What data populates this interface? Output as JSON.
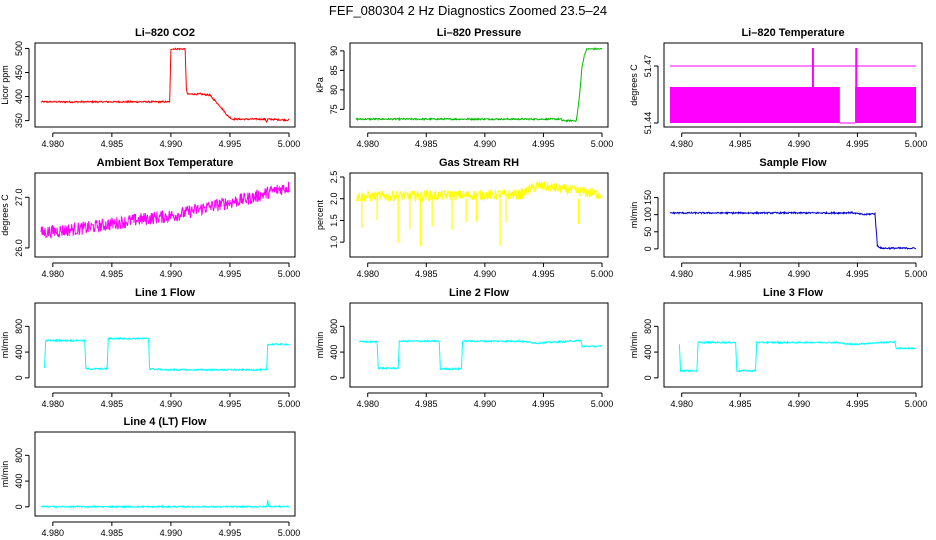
{
  "title": "FEF_080304  2 Hz Diagnostics Zoomed 23.5–24",
  "chart_data": [
    {
      "type": "line",
      "title": "Li–820 CO2",
      "ylabel": "Licor ppm",
      "color": "#ff0000",
      "xlim": [
        4.979,
        5.0
      ],
      "ylim": [
        345,
        503
      ],
      "xticks": [
        "4.980",
        "4.985",
        "4.990",
        "4.995",
        "5.000"
      ],
      "yticks": [
        "350",
        "400",
        "450",
        "500"
      ],
      "series": [
        {
          "name": "CO2",
          "x": [
            4.979,
            4.9898,
            4.9899,
            4.99,
            4.9912,
            4.9913,
            4.9914,
            4.9925,
            4.9933,
            4.9943,
            4.9948,
            4.9952,
            4.998,
            4.9981,
            4.9982,
            5.0
          ],
          "y": [
            389,
            389,
            389,
            499,
            499,
            420,
            405,
            405,
            403,
            376,
            360,
            353,
            353,
            347,
            353,
            351
          ]
        }
      ]
    },
    {
      "type": "line",
      "title": "Li–820 Pressure",
      "ylabel": "kPa",
      "color": "#00bb00",
      "xlim": [
        4.979,
        5.0
      ],
      "ylim": [
        71.5,
        91
      ],
      "xticks": [
        "4.980",
        "4.985",
        "4.990",
        "4.995",
        "5.000"
      ],
      "yticks": [
        "75",
        "80",
        "85",
        "90"
      ],
      "series": [
        {
          "name": "Pressure",
          "x": [
            4.979,
            4.9965,
            4.9966,
            4.9978,
            4.9979,
            4.9981,
            4.9983,
            4.9985,
            4.9987,
            5.0
          ],
          "y": [
            72.5,
            72.5,
            72.1,
            72.1,
            74,
            79,
            86,
            89,
            90.5,
            90.5
          ]
        }
      ]
    },
    {
      "type": "line",
      "title": "Li–820 Temperature",
      "ylabel": "degrees C",
      "color": "#ff00ff",
      "xlim": [
        4.979,
        5.0
      ],
      "ylim": [
        51.44,
        51.48
      ],
      "xticks": [
        "4.980",
        "4.985",
        "4.990",
        "4.995",
        "5.000"
      ],
      "yticks": [
        "51.44",
        "51.47"
      ],
      "series": [
        {
          "name": "Temperature",
          "x": [
            4.979,
            5.0
          ],
          "y": [
            51.47,
            51.47
          ]
        }
      ]
    },
    {
      "type": "line",
      "title": "Ambient Box Temperature",
      "ylabel": "degrees C",
      "color": "#ff00ff",
      "xlim": [
        4.979,
        5.0
      ],
      "ylim": [
        25.9,
        27.4
      ],
      "xticks": [
        "4.980",
        "4.985",
        "4.990",
        "4.995",
        "5.000"
      ],
      "yticks": [
        "26.0",
        "27.0"
      ],
      "series": [
        {
          "name": "Ambient",
          "x": [
            4.979,
            4.983,
            4.987,
            4.9905,
            4.993,
            4.995,
            4.997,
            4.999,
            5.0
          ],
          "y": [
            26.3,
            26.4,
            26.55,
            26.65,
            26.8,
            26.9,
            27.0,
            27.15,
            27.2
          ]
        }
      ]
    },
    {
      "type": "line",
      "title": "Gas Stream RH",
      "ylabel": "percent",
      "color": "#ffff00",
      "xlim": [
        4.979,
        5.0
      ],
      "ylim": [
        0.75,
        2.5
      ],
      "xticks": [
        "4.980",
        "4.985",
        "4.990",
        "4.995",
        "5.000"
      ],
      "yticks": [
        "1.0",
        "1.5",
        "2.0",
        "2.5"
      ],
      "series": [
        {
          "name": "RH",
          "x": [
            4.979,
            4.993,
            4.9945,
            5.0
          ],
          "y": [
            2.05,
            2.1,
            2.3,
            2.1
          ]
        }
      ]
    },
    {
      "type": "line",
      "title": "Sample Flow",
      "ylabel": "ml/min",
      "color": "#0000cc",
      "xlim": [
        4.979,
        5.0
      ],
      "ylim": [
        -12,
        210
      ],
      "xticks": [
        "4.980",
        "4.985",
        "4.990",
        "4.995",
        "5.000"
      ],
      "yticks": [
        "0",
        "50",
        "100",
        "150"
      ],
      "series": [
        {
          "name": "Sample",
          "x": [
            4.979,
            4.9935,
            4.9945,
            4.9955,
            4.9965,
            4.9967,
            4.997,
            5.0
          ],
          "y": [
            105,
            105,
            106,
            100,
            103,
            10,
            2,
            2
          ]
        }
      ]
    },
    {
      "type": "line",
      "title": "Line 1 Flow",
      "ylabel": "ml/min",
      "color": "#00ffff",
      "xlim": [
        4.979,
        5.0
      ],
      "ylim": [
        -80,
        1100
      ],
      "xticks": [
        "4.980",
        "4.985",
        "4.990",
        "4.995",
        "5.000"
      ],
      "yticks": [
        "0",
        "400",
        "800"
      ],
      "series": [
        {
          "name": "Line1",
          "x": [
            4.9793,
            4.9794,
            4.9827,
            4.9828,
            4.9846,
            4.9847,
            4.9881,
            4.9882,
            4.9897,
            4.9981,
            4.9982,
            5.0
          ],
          "y": [
            150,
            580,
            580,
            140,
            140,
            610,
            610,
            140,
            125,
            125,
            520,
            520
          ]
        }
      ]
    },
    {
      "type": "line",
      "title": "Line 2 Flow",
      "ylabel": "ml/min",
      "color": "#00ffff",
      "xlim": [
        4.979,
        5.0
      ],
      "ylim": [
        -80,
        1100
      ],
      "xticks": [
        "4.980",
        "4.985",
        "4.990",
        "4.995",
        "5.000"
      ],
      "yticks": [
        "0",
        "400",
        "800"
      ],
      "series": [
        {
          "name": "Line2",
          "x": [
            4.9793,
            4.9808,
            4.9809,
            4.9826,
            4.9827,
            4.9861,
            4.9862,
            4.988,
            4.9881,
            4.993,
            4.9945,
            4.9982,
            4.9983,
            5.0
          ],
          "y": [
            560,
            560,
            150,
            150,
            570,
            570,
            140,
            140,
            570,
            570,
            540,
            580,
            490,
            490
          ]
        }
      ]
    },
    {
      "type": "line",
      "title": "Line 3 Flow",
      "ylabel": "ml/min",
      "color": "#00ffff",
      "xlim": [
        4.979,
        5.0
      ],
      "ylim": [
        -80,
        1100
      ],
      "xticks": [
        "4.980",
        "4.985",
        "4.990",
        "4.995",
        "5.000"
      ],
      "yticks": [
        "0",
        "400",
        "800"
      ],
      "series": [
        {
          "name": "Line3",
          "x": [
            4.9798,
            4.9799,
            4.9813,
            4.9814,
            4.9846,
            4.9847,
            4.9863,
            4.9864,
            4.993,
            4.9945,
            4.9982,
            4.9983,
            5.0
          ],
          "y": [
            520,
            110,
            110,
            550,
            550,
            110,
            110,
            550,
            550,
            520,
            560,
            460,
            460
          ]
        }
      ]
    },
    {
      "type": "line",
      "title": "Line 4 (LT) Flow",
      "ylabel": "ml/min",
      "color": "#00ffff",
      "xlim": [
        4.979,
        5.0
      ],
      "ylim": [
        -80,
        1100
      ],
      "xticks": [
        "4.980",
        "4.985",
        "4.990",
        "4.995",
        "5.000"
      ],
      "yticks": [
        "0",
        "400",
        "800"
      ],
      "series": [
        {
          "name": "Line4",
          "x": [
            4.979,
            4.9981,
            4.9982,
            4.9983,
            4.9984,
            5.0
          ],
          "y": [
            2,
            2,
            110,
            5,
            5,
            5
          ]
        }
      ]
    }
  ]
}
